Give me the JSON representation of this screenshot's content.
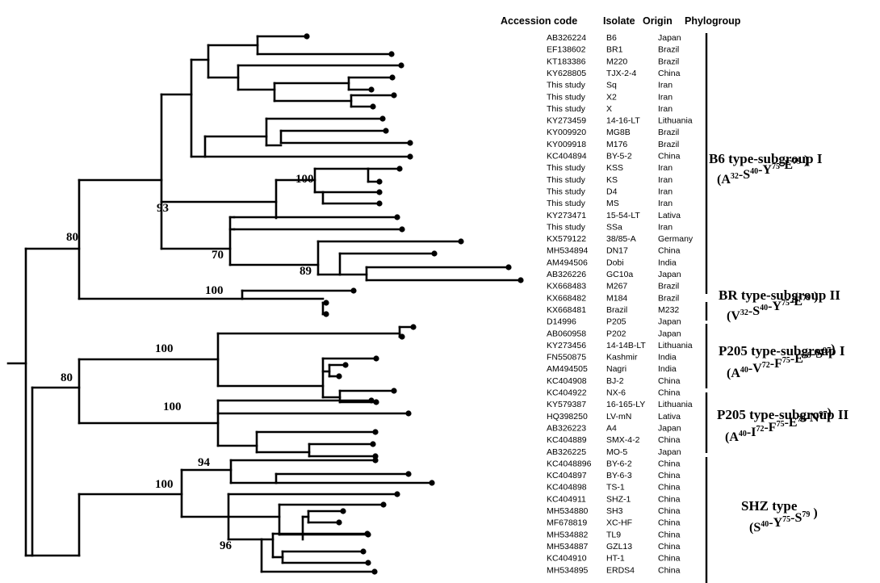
{
  "headers": {
    "accession": "Accession code",
    "isolate": "Isolate",
    "origin": "Origin",
    "phylogroup": "Phylogroup"
  },
  "rows": [
    {
      "accession": "AB326224",
      "isolate": "B6",
      "origin": "Japan"
    },
    {
      "accession": "EF138602",
      "isolate": "BR1",
      "origin": "Brazil"
    },
    {
      "accession": "KT183386",
      "isolate": "M220",
      "origin": "Brazil"
    },
    {
      "accession": "KY628805",
      "isolate": "TJX-2-4",
      "origin": "China"
    },
    {
      "accession": "This study",
      "isolate": "Sq",
      "origin": "Iran"
    },
    {
      "accession": "This study",
      "isolate": "X2",
      "origin": "Iran"
    },
    {
      "accession": "This study",
      "isolate": "X",
      "origin": "Iran"
    },
    {
      "accession": "KY273459",
      "isolate": "14-16-LT",
      "origin": "Lithuania"
    },
    {
      "accession": "KY009920",
      "isolate": "MG8B",
      "origin": "Brazil"
    },
    {
      "accession": "KY009918",
      "isolate": "M176",
      "origin": "Brazil"
    },
    {
      "accession": "KC404894",
      "isolate": "BY-5-2",
      "origin": "China"
    },
    {
      "accession": "This study",
      "isolate": "KSS",
      "origin": "Iran"
    },
    {
      "accession": "This study",
      "isolate": "KS",
      "origin": "Iran"
    },
    {
      "accession": "This study",
      "isolate": "D4",
      "origin": "Iran"
    },
    {
      "accession": "This study",
      "isolate": "MS",
      "origin": "Iran"
    },
    {
      "accession": "KY273471",
      "isolate": "15-54-LT",
      "origin": "Lativa"
    },
    {
      "accession": "This study",
      "isolate": "SSa",
      "origin": "Iran"
    },
    {
      "accession": "KX579122",
      "isolate": "38/85-A",
      "origin": "Germany"
    },
    {
      "accession": "MH534894",
      "isolate": "DN17",
      "origin": "China"
    },
    {
      "accession": "AM494506",
      "isolate": "Dobi",
      "origin": "India"
    },
    {
      "accession": "AB326226",
      "isolate": "GC10a",
      "origin": "Japan"
    },
    {
      "accession": "KX668483",
      "isolate": "M267",
      "origin": "Brazil"
    },
    {
      "accession": "KX668482",
      "isolate": "M184",
      "origin": "Brazil"
    },
    {
      "accession": "KX668481",
      "isolate": "Brazil",
      "origin": "M232"
    },
    {
      "accession": "D14996",
      "isolate": "P205",
      "origin": "Japan"
    },
    {
      "accession": "AB060958",
      "isolate": "P202",
      "origin": "Japan"
    },
    {
      "accession": "KY273456",
      "isolate": "14-14B-LT",
      "origin": "Lithuania"
    },
    {
      "accession": "FN550875",
      "isolate": "Kashmir",
      "origin": "India"
    },
    {
      "accession": "AM494505",
      "isolate": "Nagri",
      "origin": "India"
    },
    {
      "accession": "KC404908",
      "isolate": "BJ-2",
      "origin": "China"
    },
    {
      "accession": "KC404922",
      "isolate": "NX-6",
      "origin": "China"
    },
    {
      "accession": "KY579387",
      "isolate": "16-165-LY",
      "origin": "Lithuania"
    },
    {
      "accession": "HQ398250",
      "isolate": "LV-mN",
      "origin": "Lativa"
    },
    {
      "accession": "AB326223",
      "isolate": "A4",
      "origin": "Japan"
    },
    {
      "accession": "KC404889",
      "isolate": "SMX-4-2",
      "origin": "China"
    },
    {
      "accession": "AB326225",
      "isolate": "MO-5",
      "origin": "Japan"
    },
    {
      "accession": "KC4048896",
      "isolate": "BY-6-2",
      "origin": "China"
    },
    {
      "accession": "KC404897",
      "isolate": "BY-6-3",
      "origin": "China"
    },
    {
      "accession": "KC404898",
      "isolate": "TS-1",
      "origin": "China"
    },
    {
      "accession": "KC404911",
      "isolate": "SHZ-1",
      "origin": "China"
    },
    {
      "accession": "MH534880",
      "isolate": "SH3",
      "origin": "China"
    },
    {
      "accession": "MF678819",
      "isolate": "XC-HF",
      "origin": "China"
    },
    {
      "accession": "MH534882",
      "isolate": "TL9",
      "origin": "China"
    },
    {
      "accession": "MH534887",
      "isolate": "GZL13",
      "origin": "China"
    },
    {
      "accession": "KC404910",
      "isolate": "HT-1",
      "origin": "China"
    },
    {
      "accession": "MH534895",
      "isolate": "ERDS4",
      "origin": "China"
    }
  ],
  "groups": [
    {
      "title": "B6 type-subgroup I",
      "motif": [
        [
          "A",
          "32"
        ],
        [
          "-S",
          "40"
        ],
        [
          "-Y",
          "75"
        ],
        [
          "-E",
          "79"
        ],
        [
          " )",
          ""
        ]
      ],
      "motif_prefix": "("
    },
    {
      "title": "BR type-subgroup II",
      "motif": [
        [
          "V",
          "32"
        ],
        [
          "-S",
          "40"
        ],
        [
          "-Y",
          "75"
        ],
        [
          "-E",
          "79"
        ],
        [
          " )",
          ""
        ]
      ],
      "motif_prefix": "("
    },
    {
      "title": "P205 type-subgroup I",
      "motif": [
        [
          "A",
          "40"
        ],
        [
          "-V",
          "72"
        ],
        [
          "-F",
          "75"
        ],
        [
          "-E",
          "79"
        ],
        [
          "-S",
          "97"
        ],
        [
          ")",
          ""
        ]
      ],
      "motif_prefix": "("
    },
    {
      "title": "P205 type-subgroup II",
      "motif": [
        [
          "A",
          "40"
        ],
        [
          "-I",
          "72"
        ],
        [
          "-F",
          "75"
        ],
        [
          "-E",
          "79"
        ],
        [
          "-N",
          "97"
        ],
        [
          ")",
          ""
        ]
      ],
      "motif_prefix": "("
    },
    {
      "title": "SHZ type",
      "motif": [
        [
          "S",
          "40"
        ],
        [
          "-Y",
          "75"
        ],
        [
          "-S",
          "79"
        ],
        [
          " )",
          ""
        ]
      ],
      "motif_prefix": "("
    }
  ],
  "bootstrap_values": [
    "80",
    "93",
    "100",
    "70",
    "89",
    "100",
    "100",
    "80",
    "100",
    "94",
    "100",
    "96"
  ]
}
